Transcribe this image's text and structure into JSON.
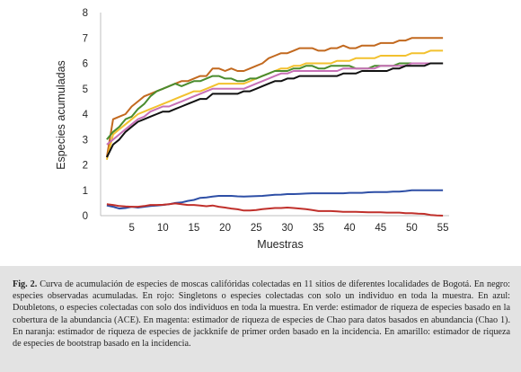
{
  "chart_data": {
    "type": "line",
    "xlabel": "Muestras",
    "ylabel": "Especies acumuladas",
    "xlim": [
      0,
      56
    ],
    "ylim": [
      0,
      8
    ],
    "xticks": [
      5,
      10,
      15,
      20,
      25,
      30,
      35,
      40,
      45,
      50,
      55
    ],
    "yticks": [
      0,
      1,
      2,
      3,
      4,
      5,
      6,
      7,
      8
    ],
    "grid": false,
    "legend": "none",
    "x": [
      1,
      2,
      3,
      4,
      5,
      6,
      7,
      8,
      9,
      10,
      11,
      12,
      13,
      14,
      15,
      16,
      17,
      18,
      19,
      20,
      21,
      22,
      23,
      24,
      25,
      26,
      27,
      28,
      29,
      30,
      31,
      32,
      33,
      34,
      35,
      36,
      37,
      38,
      39,
      40,
      41,
      42,
      43,
      44,
      45,
      46,
      47,
      48,
      49,
      50,
      51,
      52,
      53,
      54,
      55
    ],
    "series": [
      {
        "color": "#c2691f",
        "values": [
          2.3,
          3.8,
          3.9,
          4.0,
          4.3,
          4.5,
          4.7,
          4.8,
          4.9,
          5.0,
          5.1,
          5.2,
          5.3,
          5.3,
          5.4,
          5.5,
          5.5,
          5.8,
          5.8,
          5.7,
          5.8,
          5.7,
          5.7,
          5.8,
          5.9,
          6.0,
          6.2,
          6.3,
          6.4,
          6.4,
          6.5,
          6.6,
          6.6,
          6.6,
          6.5,
          6.5,
          6.6,
          6.6,
          6.7,
          6.6,
          6.6,
          6.7,
          6.7,
          6.7,
          6.8,
          6.8,
          6.8,
          6.9,
          6.9,
          7.0,
          7.0,
          7.0,
          7.0,
          7.0,
          7.0
        ]
      },
      {
        "color": "#f2c12e",
        "values": [
          2.2,
          3.2,
          3.4,
          3.6,
          3.8,
          4.0,
          4.1,
          4.2,
          4.3,
          4.4,
          4.5,
          4.6,
          4.7,
          4.8,
          4.9,
          4.9,
          5.0,
          5.1,
          5.2,
          5.2,
          5.2,
          5.2,
          5.2,
          5.3,
          5.4,
          5.5,
          5.6,
          5.7,
          5.8,
          5.8,
          5.9,
          5.9,
          6.0,
          6.0,
          6.0,
          6.0,
          6.0,
          6.1,
          6.1,
          6.1,
          6.2,
          6.2,
          6.2,
          6.2,
          6.3,
          6.3,
          6.3,
          6.3,
          6.3,
          6.4,
          6.4,
          6.4,
          6.5,
          6.5,
          6.5
        ]
      },
      {
        "color": "#4a8c2e",
        "values": [
          3.0,
          3.3,
          3.5,
          3.8,
          3.9,
          4.2,
          4.4,
          4.7,
          4.9,
          5.0,
          5.1,
          5.2,
          5.1,
          5.2,
          5.3,
          5.3,
          5.4,
          5.5,
          5.5,
          5.4,
          5.4,
          5.3,
          5.3,
          5.4,
          5.4,
          5.5,
          5.6,
          5.7,
          5.7,
          5.7,
          5.8,
          5.8,
          5.9,
          5.9,
          5.8,
          5.8,
          5.9,
          5.9,
          5.9,
          5.9,
          5.8,
          5.8,
          5.8,
          5.9,
          5.9,
          5.9,
          5.9,
          6.0,
          6.0,
          6.0,
          6.0,
          6.0,
          6.0,
          6.0,
          6.0
        ]
      },
      {
        "color": "#c770b6",
        "values": [
          2.8,
          3.0,
          3.2,
          3.4,
          3.6,
          3.8,
          3.9,
          4.1,
          4.2,
          4.3,
          4.3,
          4.4,
          4.5,
          4.6,
          4.7,
          4.8,
          4.9,
          5.0,
          5.0,
          5.0,
          5.0,
          5.0,
          5.0,
          5.1,
          5.2,
          5.3,
          5.4,
          5.5,
          5.6,
          5.6,
          5.7,
          5.7,
          5.7,
          5.7,
          5.7,
          5.7,
          5.7,
          5.7,
          5.8,
          5.8,
          5.8,
          5.8,
          5.8,
          5.8,
          5.9,
          5.9,
          5.9,
          5.9,
          5.9,
          6.0,
          6.0,
          6.0,
          6.0,
          6.0,
          6.0
        ]
      },
      {
        "color": "#111111",
        "values": [
          2.3,
          2.8,
          3.0,
          3.3,
          3.5,
          3.7,
          3.8,
          3.9,
          4.0,
          4.1,
          4.1,
          4.2,
          4.3,
          4.4,
          4.5,
          4.6,
          4.6,
          4.8,
          4.8,
          4.8,
          4.8,
          4.8,
          4.9,
          4.9,
          5.0,
          5.1,
          5.2,
          5.3,
          5.3,
          5.4,
          5.4,
          5.5,
          5.5,
          5.5,
          5.5,
          5.5,
          5.5,
          5.5,
          5.6,
          5.6,
          5.6,
          5.7,
          5.7,
          5.7,
          5.7,
          5.7,
          5.8,
          5.8,
          5.9,
          5.9,
          5.9,
          5.9,
          6.0,
          6.0,
          6.0
        ]
      },
      {
        "color": "#2e4fa6",
        "values": [
          0.4,
          0.35,
          0.28,
          0.3,
          0.35,
          0.32,
          0.35,
          0.38,
          0.4,
          0.42,
          0.45,
          0.5,
          0.52,
          0.58,
          0.62,
          0.7,
          0.72,
          0.75,
          0.78,
          0.78,
          0.78,
          0.76,
          0.75,
          0.76,
          0.77,
          0.78,
          0.8,
          0.82,
          0.83,
          0.85,
          0.85,
          0.86,
          0.87,
          0.88,
          0.88,
          0.88,
          0.88,
          0.88,
          0.88,
          0.9,
          0.9,
          0.9,
          0.92,
          0.93,
          0.93,
          0.93,
          0.95,
          0.95,
          0.97,
          1.0,
          1.0,
          1.0,
          1.0,
          1.0,
          1.0
        ]
      },
      {
        "color": "#c0302b",
        "values": [
          0.45,
          0.42,
          0.38,
          0.36,
          0.35,
          0.35,
          0.38,
          0.42,
          0.42,
          0.43,
          0.45,
          0.48,
          0.45,
          0.42,
          0.42,
          0.4,
          0.37,
          0.4,
          0.35,
          0.32,
          0.28,
          0.25,
          0.2,
          0.2,
          0.22,
          0.26,
          0.28,
          0.3,
          0.3,
          0.32,
          0.3,
          0.28,
          0.26,
          0.22,
          0.18,
          0.18,
          0.18,
          0.17,
          0.15,
          0.15,
          0.15,
          0.14,
          0.13,
          0.13,
          0.13,
          0.12,
          0.12,
          0.12,
          0.1,
          0.1,
          0.08,
          0.07,
          0.03,
          0.01,
          0.0
        ]
      }
    ]
  },
  "caption": {
    "label": "Fig. 2.",
    "text": " Curva de acumulación de especies de moscas califóridas colectadas en 11 sitios de diferentes localidades de Bogotá. En negro: especies observadas acumuladas. En rojo: Singletons o especies colectadas con solo un individuo en toda la muestra. En azul: Doubletons, o especies colectadas con solo dos individuos en toda la muestra. En verde: estimador de riqueza de especies basado en la cobertura de la abundancia (ACE). En magenta: estimador de riqueza de especies de Chao para datos basados en abundancia (Chao 1). En naranja: estimador de riqueza de especies de jackknife de primer orden basado en la incidencia. En amarillo: estimador de riqueza de especies de bootstrap basado en la incidencia."
  }
}
